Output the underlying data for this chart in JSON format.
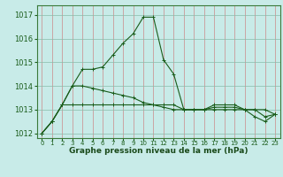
{
  "x": [
    0,
    1,
    2,
    3,
    4,
    5,
    6,
    7,
    8,
    9,
    10,
    11,
    12,
    13,
    14,
    15,
    16,
    17,
    18,
    19,
    20,
    21,
    22,
    23
  ],
  "series1": [
    1012.0,
    1012.5,
    1013.2,
    1014.0,
    1014.7,
    1014.7,
    1014.8,
    1015.3,
    1015.8,
    1016.2,
    1016.9,
    1016.9,
    1015.1,
    1014.5,
    1013.0,
    1013.0,
    1013.0,
    1013.2,
    1013.2,
    1013.2,
    1013.0,
    1012.7,
    1012.5,
    1012.8
  ],
  "series2": [
    1012.0,
    1012.5,
    1013.2,
    1014.0,
    1014.0,
    1013.9,
    1013.8,
    1013.7,
    1013.6,
    1013.5,
    1013.3,
    1013.2,
    1013.1,
    1013.0,
    1013.0,
    1013.0,
    1013.0,
    1013.1,
    1013.1,
    1013.1,
    1013.0,
    1013.0,
    1012.7,
    1012.8
  ],
  "series3": [
    1012.0,
    1012.5,
    1013.2,
    1013.2,
    1013.2,
    1013.2,
    1013.2,
    1013.2,
    1013.2,
    1013.2,
    1013.2,
    1013.2,
    1013.2,
    1013.2,
    1013.0,
    1013.0,
    1013.0,
    1013.0,
    1013.0,
    1013.0,
    1013.0,
    1013.0,
    1013.0,
    1012.8
  ],
  "line_color": "#1a5c1a",
  "dot_color": "#1a5c1a",
  "bg_color": "#c8ebe8",
  "grid_color_x": "#cc8888",
  "grid_color_y": "#88bbaa",
  "xlabel": "Graphe pression niveau de la mer (hPa)",
  "ylim": [
    1011.8,
    1017.4
  ],
  "yticks": [
    1012,
    1013,
    1014,
    1015,
    1016,
    1017
  ],
  "xticks": [
    0,
    1,
    2,
    3,
    4,
    5,
    6,
    7,
    8,
    9,
    10,
    11,
    12,
    13,
    14,
    15,
    16,
    17,
    18,
    19,
    20,
    21,
    22,
    23
  ]
}
